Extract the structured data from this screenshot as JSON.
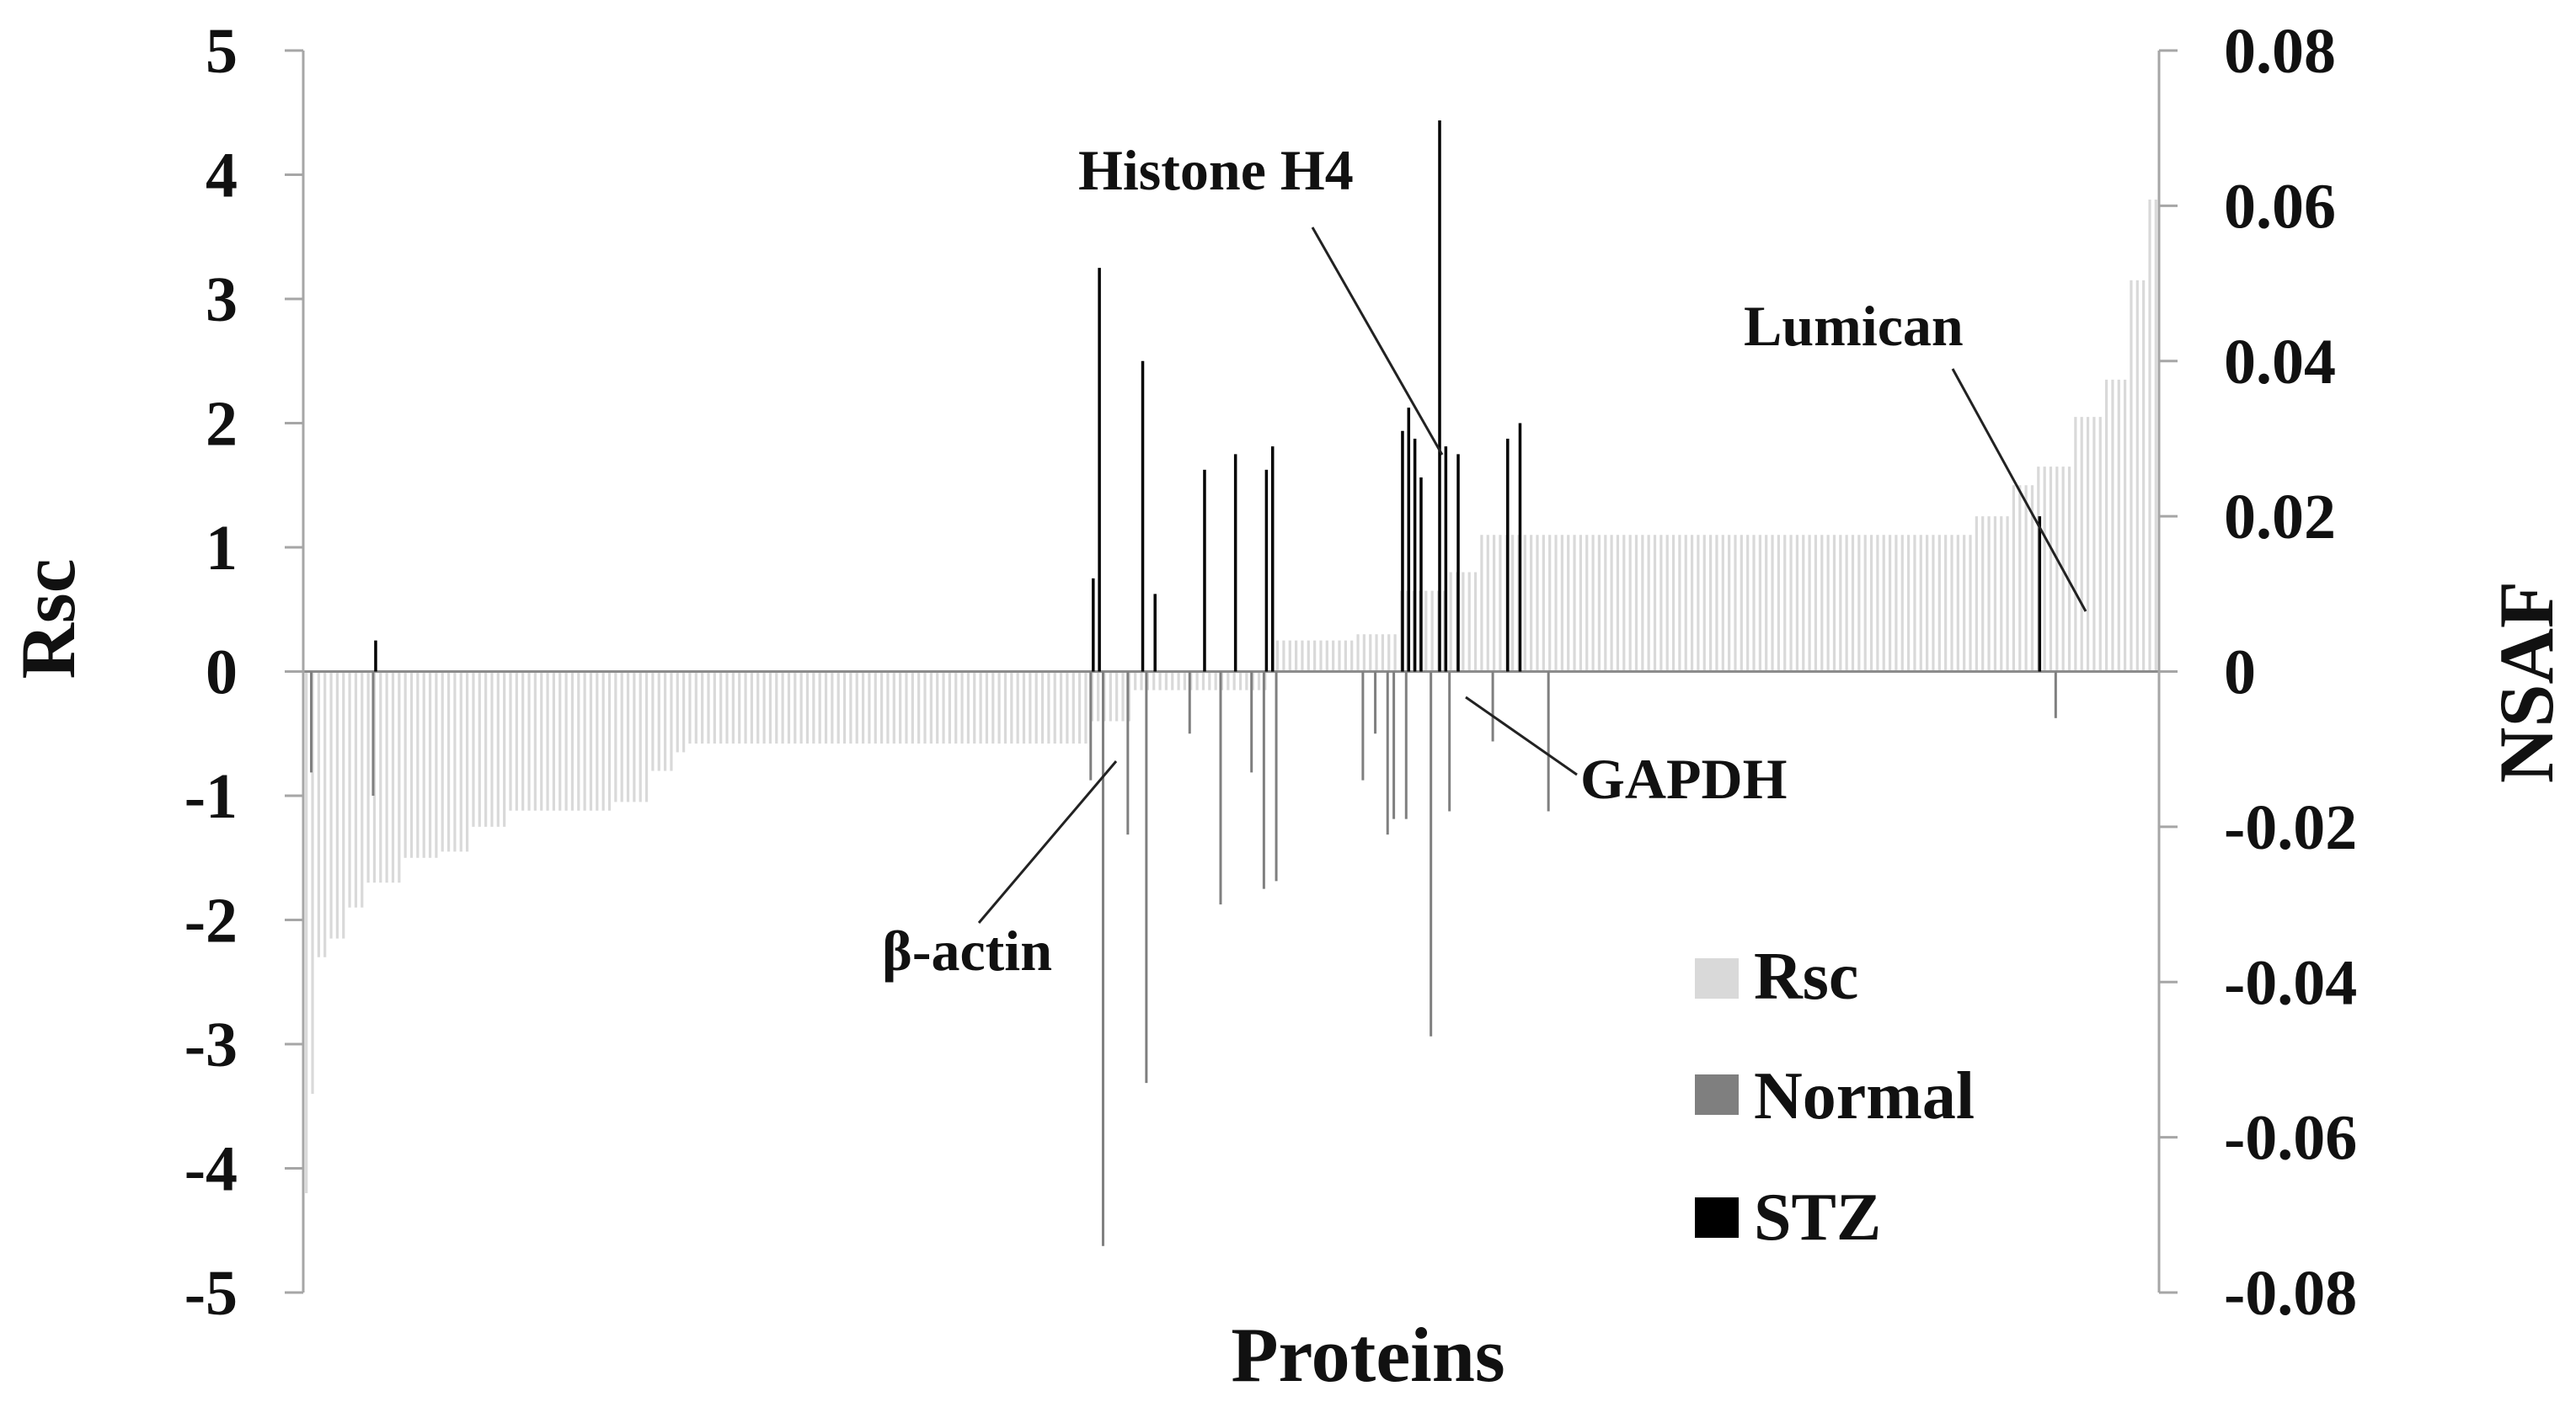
{
  "chart_data": {
    "type": "bar",
    "xlabel": "Proteins",
    "ylabel": "Rsc",
    "y2label": "NSAF",
    "ylim": [
      -5,
      5
    ],
    "y2lim": [
      -0.08,
      0.08
    ],
    "yticks": [
      "5",
      "4",
      "3",
      "2",
      "1",
      "0",
      "-1",
      "-2",
      "-3",
      "-4",
      "-5"
    ],
    "y2ticks": [
      "0.08",
      "0.06",
      "0.04",
      "0.02",
      "0",
      "-0.02",
      "-0.04",
      "-0.06",
      "-0.08"
    ],
    "protein_count": 300,
    "legend": {
      "position": "bottom-right",
      "items": [
        {
          "label": "Rsc",
          "color": "#d9d9d9"
        },
        {
          "label": "Normal",
          "color": "#7f7f7f"
        },
        {
          "label": "STZ",
          "color": "#000000"
        }
      ]
    },
    "annotations": [
      {
        "text": "Histone H4",
        "protein_index": 185
      },
      {
        "text": "Lumican",
        "protein_index": 292
      },
      {
        "text": "GAPDH",
        "protein_index": 190
      },
      {
        "text": "β-actin",
        "protein_index": 130
      }
    ],
    "series": [
      {
        "name": "Rsc",
        "axis": "left",
        "approx_segments": [
          {
            "from": 0,
            "to": 1,
            "value": -4.2
          },
          {
            "from": 1,
            "to": 2,
            "value": -3.4
          },
          {
            "from": 2,
            "to": 4,
            "value": -2.3
          },
          {
            "from": 4,
            "to": 7,
            "value": -2.15
          },
          {
            "from": 7,
            "to": 10,
            "value": -1.9
          },
          {
            "from": 10,
            "to": 16,
            "value": -1.7
          },
          {
            "from": 16,
            "to": 22,
            "value": -1.5
          },
          {
            "from": 22,
            "to": 27,
            "value": -1.45
          },
          {
            "from": 27,
            "to": 33,
            "value": -1.25
          },
          {
            "from": 33,
            "to": 50,
            "value": -1.12
          },
          {
            "from": 50,
            "to": 56,
            "value": -1.05
          },
          {
            "from": 56,
            "to": 60,
            "value": -0.8
          },
          {
            "from": 60,
            "to": 62,
            "value": -0.65
          },
          {
            "from": 62,
            "to": 127,
            "value": -0.58
          },
          {
            "from": 127,
            "to": 134,
            "value": -0.4
          },
          {
            "from": 134,
            "to": 156,
            "value": -0.15
          },
          {
            "from": 156,
            "to": 157,
            "value": 0
          },
          {
            "from": 157,
            "to": 170,
            "value": 0.25
          },
          {
            "from": 170,
            "to": 177,
            "value": 0.3
          },
          {
            "from": 177,
            "to": 185,
            "value": 0.65
          },
          {
            "from": 185,
            "to": 190,
            "value": 0.8
          },
          {
            "from": 190,
            "to": 240,
            "value": 1.1
          },
          {
            "from": 240,
            "to": 270,
            "value": 1.1
          },
          {
            "from": 270,
            "to": 276,
            "value": 1.25
          },
          {
            "from": 276,
            "to": 280,
            "value": 1.5
          },
          {
            "from": 280,
            "to": 286,
            "value": 1.65
          },
          {
            "from": 286,
            "to": 291,
            "value": 2.05
          },
          {
            "from": 291,
            "to": 295,
            "value": 2.35
          },
          {
            "from": 295,
            "to": 298,
            "value": 3.15
          },
          {
            "from": 298,
            "to": 300,
            "value": 3.8
          }
        ]
      },
      {
        "name": "Normal",
        "axis": "right",
        "spikes": [
          {
            "index": 1,
            "value": -0.013
          },
          {
            "index": 11,
            "value": -0.016
          },
          {
            "index": 127,
            "value": -0.014
          },
          {
            "index": 129,
            "value": -0.074
          },
          {
            "index": 133,
            "value": -0.021
          },
          {
            "index": 136,
            "value": -0.053
          },
          {
            "index": 143,
            "value": -0.008
          },
          {
            "index": 148,
            "value": -0.03
          },
          {
            "index": 153,
            "value": -0.013
          },
          {
            "index": 155,
            "value": -0.028
          },
          {
            "index": 157,
            "value": -0.027
          },
          {
            "index": 171,
            "value": -0.014
          },
          {
            "index": 173,
            "value": -0.008
          },
          {
            "index": 175,
            "value": -0.021
          },
          {
            "index": 176,
            "value": -0.019
          },
          {
            "index": 178,
            "value": -0.019
          },
          {
            "index": 182,
            "value": -0.047
          },
          {
            "index": 185,
            "value": -0.018
          },
          {
            "index": 192,
            "value": -0.009
          },
          {
            "index": 201,
            "value": -0.018
          },
          {
            "index": 283,
            "value": -0.006
          }
        ]
      },
      {
        "name": "STZ",
        "axis": "right",
        "spikes": [
          {
            "index": 11,
            "value": 0.004
          },
          {
            "index": 127,
            "value": 0.012
          },
          {
            "index": 128,
            "value": 0.052
          },
          {
            "index": 135,
            "value": 0.04
          },
          {
            "index": 137,
            "value": 0.01
          },
          {
            "index": 145,
            "value": 0.026
          },
          {
            "index": 150,
            "value": 0.028
          },
          {
            "index": 155,
            "value": 0.026
          },
          {
            "index": 156,
            "value": 0.029
          },
          {
            "index": 177,
            "value": 0.031
          },
          {
            "index": 178,
            "value": 0.034
          },
          {
            "index": 179,
            "value": 0.03
          },
          {
            "index": 180,
            "value": 0.025
          },
          {
            "index": 183,
            "value": 0.071
          },
          {
            "index": 184,
            "value": 0.029
          },
          {
            "index": 186,
            "value": 0.028
          },
          {
            "index": 194,
            "value": 0.03
          },
          {
            "index": 196,
            "value": 0.032
          },
          {
            "index": 280,
            "value": 0.02
          }
        ]
      }
    ]
  }
}
